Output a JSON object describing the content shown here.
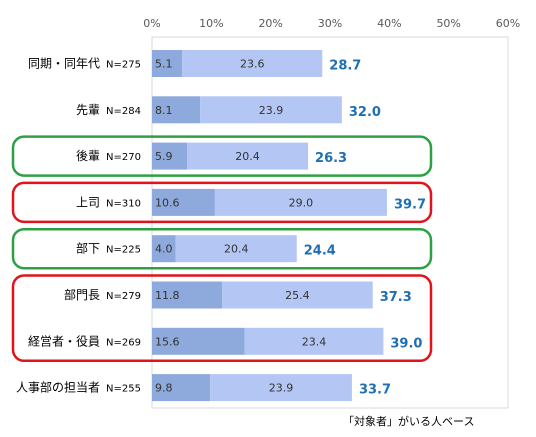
{
  "chart_data": {
    "type": "bar",
    "orientation": "horizontal",
    "stacked": true,
    "categories": [
      "同期・同年代",
      "先輩",
      "後輩",
      "上司",
      "部下",
      "部門長",
      "経営者・役員",
      "人事部の担当者"
    ],
    "n_labels": [
      "N=275",
      "N=284",
      "N=270",
      "N=310",
      "N=225",
      "N=279",
      "N=269",
      "N=255"
    ],
    "series": [
      {
        "values": [
          5.1,
          8.1,
          5.9,
          10.6,
          4.0,
          11.8,
          15.6,
          9.8
        ],
        "color": "#8ea9db"
      },
      {
        "values": [
          23.6,
          23.9,
          20.4,
          29.0,
          20.4,
          25.4,
          23.4,
          23.9
        ],
        "color": "#b4c7f4"
      }
    ],
    "totals": [
      28.7,
      32.0,
      26.3,
      39.7,
      24.4,
      37.3,
      39.0,
      33.7
    ],
    "total_color": "#1f6fb4",
    "xlim": [
      0,
      60
    ],
    "x_ticks": [
      "0%",
      "10%",
      "20%",
      "30%",
      "40%",
      "50%",
      "60%"
    ],
    "grid": false,
    "highlight_boxes": [
      {
        "rows": [
          2
        ],
        "color": "#2ea043"
      },
      {
        "rows": [
          3
        ],
        "color": "#e0141a"
      },
      {
        "rows": [
          4
        ],
        "color": "#2ea043"
      },
      {
        "rows": [
          5,
          6
        ],
        "color": "#e0141a"
      }
    ],
    "footnote": "「対象者」がいる人ベース"
  }
}
